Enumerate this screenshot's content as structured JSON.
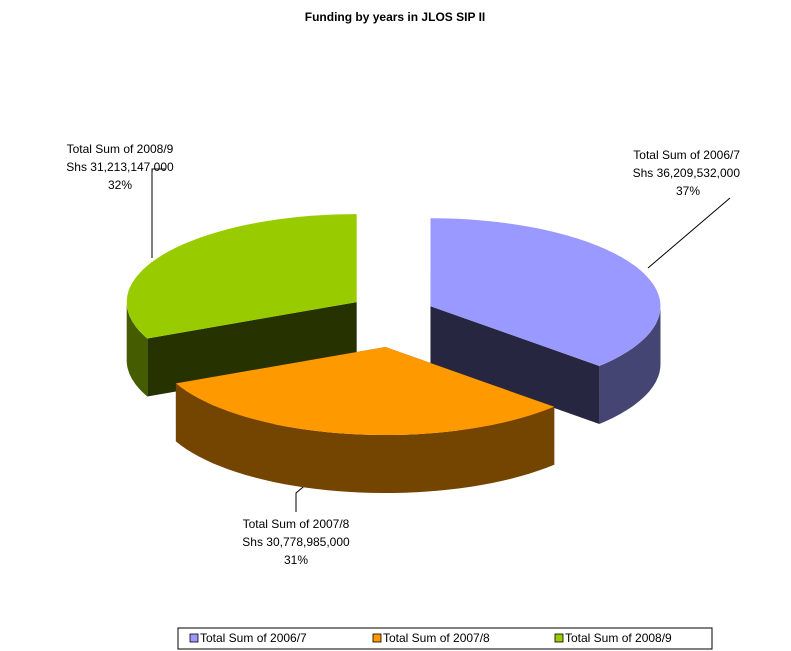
{
  "chart_data": {
    "type": "pie",
    "title": "Funding by years in JLOS SIP II",
    "categories": [
      "Total Sum of 2006/7",
      "Total Sum of 2007/8",
      "Total Sum of 2008/9"
    ],
    "values": [
      36209532000,
      30778985000,
      31213147000
    ],
    "value_labels": [
      "Shs  36,209,532,000",
      "Shs 30,778,985,000",
      "Shs 31,213,147,000"
    ],
    "percent_labels": [
      "37%",
      "31%",
      "32%"
    ],
    "colors": [
      "#9999ff",
      "#ff9900",
      "#99cc00"
    ],
    "legend": "bottom"
  }
}
